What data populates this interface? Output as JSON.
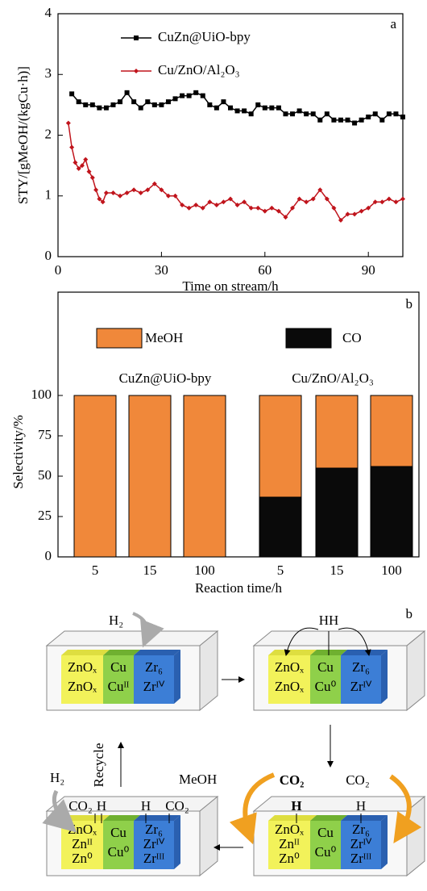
{
  "chart_data": [
    {
      "type": "line",
      "panel_label": "a",
      "xlabel": "Time on stream/h",
      "ylabel": "STY/[gMeOH/(kgCu·h)]",
      "xlim": [
        0,
        100
      ],
      "ylim": [
        0,
        4
      ],
      "xticks": [
        0,
        30,
        60,
        90
      ],
      "yticks": [
        0,
        1,
        2,
        3,
        4
      ],
      "series": [
        {
          "name": "CuZn@UiO-bpy",
          "color": "#000000",
          "x": [
            4,
            6,
            8,
            10,
            12,
            14,
            16,
            18,
            20,
            22,
            24,
            26,
            28,
            30,
            32,
            34,
            36,
            38,
            40,
            42,
            44,
            46,
            48,
            50,
            52,
            54,
            56,
            58,
            60,
            62,
            64,
            66,
            68,
            70,
            72,
            74,
            76,
            78,
            80,
            82,
            84,
            86,
            88,
            90,
            92,
            94,
            96,
            98,
            100
          ],
          "values": [
            2.68,
            2.55,
            2.5,
            2.5,
            2.45,
            2.45,
            2.5,
            2.55,
            2.7,
            2.55,
            2.45,
            2.55,
            2.5,
            2.5,
            2.55,
            2.6,
            2.65,
            2.65,
            2.7,
            2.65,
            2.5,
            2.45,
            2.55,
            2.45,
            2.4,
            2.4,
            2.35,
            2.5,
            2.45,
            2.45,
            2.45,
            2.35,
            2.35,
            2.4,
            2.35,
            2.35,
            2.25,
            2.35,
            2.25,
            2.25,
            2.25,
            2.2,
            2.25,
            2.3,
            2.35,
            2.25,
            2.35,
            2.35,
            2.3
          ]
        },
        {
          "name": "Cu/ZnO/Al₂O₃",
          "color": "#c0141c",
          "x": [
            3,
            4,
            5,
            6,
            7,
            8,
            9,
            10,
            11,
            12,
            13,
            14,
            16,
            18,
            20,
            22,
            24,
            26,
            28,
            30,
            32,
            34,
            36,
            38,
            40,
            42,
            44,
            46,
            48,
            50,
            52,
            54,
            56,
            58,
            60,
            62,
            64,
            66,
            68,
            70,
            72,
            74,
            76,
            78,
            80,
            82,
            84,
            86,
            88,
            90,
            92,
            94,
            96,
            98,
            100
          ],
          "values": [
            2.2,
            1.8,
            1.55,
            1.45,
            1.5,
            1.6,
            1.4,
            1.3,
            1.1,
            0.95,
            0.9,
            1.05,
            1.05,
            1.0,
            1.05,
            1.1,
            1.05,
            1.1,
            1.2,
            1.1,
            1.0,
            1.0,
            0.85,
            0.8,
            0.85,
            0.8,
            0.9,
            0.85,
            0.9,
            0.95,
            0.85,
            0.9,
            0.8,
            0.8,
            0.75,
            0.8,
            0.75,
            0.65,
            0.8,
            0.95,
            0.9,
            0.95,
            1.1,
            0.95,
            0.8,
            0.6,
            0.7,
            0.7,
            0.75,
            0.8,
            0.9,
            0.9,
            0.95,
            0.9,
            0.95
          ]
        }
      ]
    },
    {
      "type": "stacked-bar",
      "panel_label": "b",
      "xlabel": "Reaction time/h",
      "ylabel": "Selectivity/%",
      "groups": [
        "CuZn@UiO-bpy",
        "Cu/ZnO/Al₂O₃"
      ],
      "categories": [
        "5",
        "15",
        "100",
        "5",
        "15",
        "100"
      ],
      "ylim": [
        0,
        164
      ],
      "yticks": [
        0,
        25,
        50,
        75,
        100
      ],
      "series": [
        {
          "name": "MeOH",
          "color": "#f0883a",
          "values": [
            100,
            100,
            100,
            63,
            45,
            44
          ]
        },
        {
          "name": "CO",
          "color": "#0a0a0a",
          "values": [
            0,
            0,
            0,
            37,
            55,
            56
          ]
        }
      ]
    }
  ],
  "diagram": {
    "panel_label": "b",
    "recycle": "Recycle",
    "step1": {
      "gas": "H₂",
      "zn": [
        "ZnOₓ",
        "ZnOₓ"
      ],
      "cu": [
        "Cu",
        "Cuᴵᴵ"
      ],
      "zr": [
        "Zr₆",
        "Zrᴵⱽ"
      ]
    },
    "step2": {
      "adsorbed": "HH",
      "zn": [
        "ZnOₓ",
        "ZnOₓ"
      ],
      "cu": [
        "Cu",
        "Cu⁰"
      ],
      "zr": [
        "Zr₆",
        "Zrᴵⱽ"
      ]
    },
    "step3": {
      "gas": [
        "CO₂",
        "CO₂"
      ],
      "adsorbed": [
        "H",
        "H"
      ],
      "zn": [
        "ZnOₓ",
        "Znᴵᴵ",
        "Zn⁰"
      ],
      "cu": [
        "Cu",
        "Cu⁰"
      ],
      "zr": [
        "Zr₆",
        "Zrᴵⱽ",
        "Zrᴵᴵᴵ"
      ]
    },
    "step4": {
      "gas": "H₂",
      "product": "MeOH",
      "adsorbed": [
        "CO₂",
        "H",
        "H",
        "CO₂"
      ],
      "zn": [
        "ZnOₓ",
        "Znᴵᴵ",
        "Zn⁰"
      ],
      "cu": [
        "Cu",
        "Cu⁰"
      ],
      "zr": [
        "Zr₆",
        "Zrᴵⱽ",
        "Zrᴵᴵᴵ"
      ]
    }
  }
}
